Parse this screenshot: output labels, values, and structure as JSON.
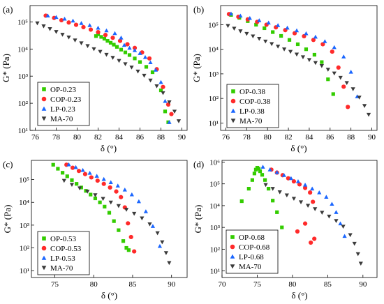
{
  "colors": {
    "OP": "#33cc00",
    "COP": "#ff2a2a",
    "LP": "#1a66ff",
    "MA": "#3a3a3a"
  },
  "chart_data": [
    {
      "type": "scatter",
      "panel_label": "(a)",
      "xlabel": "δ (°)",
      "ylabel": "G* (Pa)",
      "yscale": "log",
      "xlim": [
        75.5,
        90.5
      ],
      "ylim": [
        10,
        400000
      ],
      "xticks": [
        "76",
        "78",
        "80",
        "82",
        "84",
        "86",
        "88",
        "90"
      ],
      "yticks": [
        "10¹",
        "10²",
        "10³",
        "10⁴",
        "10⁵"
      ],
      "legend_position": "bottom-left",
      "series": [
        {
          "name": "OP-0.23",
          "marker": "square",
          "x": [
            81.8,
            82.0,
            82.3,
            82.6,
            82.9,
            83.2,
            83.5,
            83.8,
            84.2,
            84.6,
            85.0,
            85.5,
            86.0,
            86.6,
            87.2,
            88.0,
            88.4,
            88.7
          ],
          "y": [
            30000,
            35000,
            28000,
            24000,
            20000,
            17000,
            14500,
            12000,
            9500,
            7500,
            6000,
            4500,
            3300,
            2200,
            1400,
            300,
            50,
            20
          ]
        },
        {
          "name": "COP-0.23",
          "marker": "circle",
          "x": [
            77.0,
            77.8,
            78.5,
            79.2,
            79.9,
            80.6,
            81.3,
            82.0,
            82.7,
            83.4,
            84.1,
            84.8,
            85.5,
            86.2,
            86.9,
            87.6,
            88.2,
            88.7,
            89.0
          ],
          "y": [
            170000,
            140000,
            115000,
            95000,
            78000,
            64000,
            52000,
            42000,
            33000,
            26000,
            20000,
            15000,
            11000,
            7500,
            4500,
            1800,
            400,
            90,
            40
          ]
        },
        {
          "name": "LP-0.23",
          "marker": "triangle-up",
          "x": [
            77.2,
            78.0,
            78.8,
            79.6,
            80.4,
            81.2,
            82.0,
            82.8,
            83.6,
            84.2,
            84.5,
            85.0,
            85.5,
            86.0,
            86.5,
            87.0,
            87.5,
            88.0,
            88.4,
            88.8
          ],
          "y": [
            170000,
            150000,
            130000,
            110000,
            90000,
            75000,
            60000,
            48000,
            38000,
            26000,
            14000,
            11000,
            9000,
            7000,
            5000,
            3200,
            1700,
            600,
            120,
            20
          ]
        },
        {
          "name": "MA-70",
          "marker": "triangle-down",
          "x": [
            76.2,
            76.8,
            77.4,
            78.0,
            78.6,
            79.2,
            79.8,
            80.4,
            81.0,
            81.6,
            82.2,
            82.8,
            83.4,
            84.0,
            84.6,
            85.2,
            85.8,
            86.4,
            87.0,
            87.6,
            88.2,
            88.8,
            89.3,
            89.7
          ],
          "y": [
            90000,
            70000,
            55000,
            43000,
            34000,
            27000,
            21000,
            16500,
            13000,
            10000,
            8000,
            6200,
            4800,
            3700,
            2800,
            2100,
            1500,
            1050,
            700,
            430,
            240,
            110,
            50,
            22
          ]
        }
      ]
    },
    {
      "type": "scatter",
      "panel_label": "(b)",
      "xlabel": "δ (°)",
      "ylabel": "G* (Pa)",
      "yscale": "log",
      "xlim": [
        75.5,
        90.5
      ],
      "ylim": [
        5,
        600000
      ],
      "xticks": [
        "76",
        "78",
        "80",
        "82",
        "84",
        "86",
        "88",
        "90"
      ],
      "yticks": [
        "10¹",
        "10²",
        "10³",
        "10⁴",
        "10⁵"
      ],
      "legend_position": "bottom-left",
      "series": [
        {
          "name": "OP-0.38",
          "marker": "square",
          "x": [
            76.5,
            77.3,
            78.1,
            78.9,
            79.7,
            80.5,
            81.3,
            82.1,
            82.9,
            83.7,
            84.5,
            85.2,
            85.8,
            86.3
          ],
          "y": [
            250000,
            190000,
            140000,
            100000,
            72000,
            50000,
            35000,
            24000,
            16000,
            10000,
            6000,
            3000,
            600,
            150
          ]
        },
        {
          "name": "COP-0.38",
          "marker": "circle",
          "x": [
            76.3,
            77.2,
            78.1,
            79.0,
            79.9,
            80.8,
            81.7,
            82.6,
            83.5,
            84.4,
            85.3,
            86.2,
            86.8,
            87.3,
            87.7
          ],
          "y": [
            270000,
            210000,
            165000,
            130000,
            100000,
            78000,
            60000,
            45000,
            34000,
            24000,
            16000,
            8000,
            1800,
            300,
            45
          ]
        },
        {
          "name": "LP-0.38",
          "marker": "triangle-up",
          "x": [
            76.5,
            77.4,
            78.3,
            79.2,
            80.1,
            81.0,
            81.9,
            82.8,
            83.7,
            84.6,
            85.5,
            86.4,
            87.3,
            88.0,
            88.6
          ],
          "y": [
            280000,
            230000,
            185000,
            150000,
            120000,
            95000,
            75000,
            58000,
            44000,
            32000,
            21000,
            12000,
            5000,
            1200,
            120
          ]
        },
        {
          "name": "MA-70",
          "marker": "triangle-down",
          "x": [
            76.2,
            76.8,
            77.4,
            78.0,
            78.6,
            79.2,
            79.8,
            80.4,
            81.0,
            81.6,
            82.2,
            82.8,
            83.4,
            84.0,
            84.6,
            85.2,
            85.8,
            86.4,
            87.0,
            87.6,
            88.2,
            88.8,
            89.3,
            89.7
          ],
          "y": [
            90000,
            70000,
            55000,
            43000,
            34000,
            27000,
            21000,
            16500,
            13000,
            10000,
            8000,
            6200,
            4800,
            3700,
            2800,
            2100,
            1500,
            1050,
            700,
            430,
            240,
            110,
            50,
            22
          ]
        }
      ]
    },
    {
      "type": "scatter",
      "panel_label": "(c)",
      "xlabel": "δ (°)",
      "ylabel": "G* (Pa)",
      "yscale": "log",
      "xlim": [
        72,
        92
      ],
      "ylim": [
        5,
        700000
      ],
      "xticks": [
        "75",
        "80",
        "85",
        "90"
      ],
      "yticks": [
        "10¹",
        "10²",
        "10³",
        "10⁴",
        "10⁵"
      ],
      "legend_position": "bottom-left",
      "series": [
        {
          "name": "OP-0.53",
          "marker": "square",
          "x": [
            74.8,
            75.4,
            76.0,
            76.6,
            77.2,
            77.8,
            78.4,
            79.0,
            79.6,
            80.2,
            80.8,
            81.4,
            82.0,
            82.6,
            83.2,
            83.8,
            84.2,
            84.5
          ],
          "y": [
            450000,
            300000,
            200000,
            140000,
            95000,
            65000,
            45000,
            32000,
            22000,
            15000,
            10000,
            6500,
            3500,
            1500,
            600,
            200,
            100,
            80
          ]
        },
        {
          "name": "COP-0.53",
          "marker": "circle",
          "x": [
            76.5,
            77.3,
            78.1,
            78.9,
            79.7,
            80.5,
            81.3,
            82.1,
            82.9,
            83.5,
            84.0,
            84.4,
            84.8,
            85.2
          ],
          "y": [
            450000,
            330000,
            240000,
            175000,
            125000,
            90000,
            65000,
            45000,
            30000,
            17000,
            6000,
            1200,
            300,
            70
          ]
        },
        {
          "name": "LP-0.53",
          "marker": "triangle-up",
          "x": [
            76.8,
            77.7,
            78.6,
            79.5,
            80.4,
            81.3,
            82.2,
            83.1,
            84.0,
            84.9,
            85.8,
            86.7,
            87.6,
            88.5
          ],
          "y": [
            460000,
            350000,
            260000,
            195000,
            145000,
            105000,
            76000,
            54000,
            36000,
            22000,
            11000,
            4000,
            900,
            120
          ]
        },
        {
          "name": "MA-70",
          "marker": "triangle-down",
          "x": [
            76.2,
            77.2,
            78.2,
            79.2,
            80.2,
            81.2,
            82.2,
            83.2,
            84.2,
            85.2,
            86.2,
            87.2,
            88.2,
            88.8,
            89.3,
            89.7
          ],
          "y": [
            90000,
            60000,
            42000,
            30000,
            21000,
            14500,
            10000,
            7000,
            4800,
            3200,
            2000,
            1100,
            450,
            180,
            60,
            22
          ]
        }
      ]
    },
    {
      "type": "scatter",
      "panel_label": "(d)",
      "xlabel": "δ (°)",
      "ylabel": "G* (Pa)",
      "yscale": "log",
      "xlim": [
        70,
        92
      ],
      "ylim": [
        5,
        1200000
      ],
      "xticks": [
        "70",
        "75",
        "80",
        "85",
        "90"
      ],
      "yticks": [
        "10¹",
        "10²",
        "10³",
        "10⁴",
        "10⁵",
        "10⁶"
      ],
      "legend_position": "bottom-left",
      "series": [
        {
          "name": "OP-0.68",
          "marker": "square",
          "x": [
            72.8,
            73.8,
            74.3,
            74.6,
            74.8,
            75.0,
            75.2,
            75.4,
            75.7,
            76.1,
            76.6,
            77.2,
            77.8,
            78.5
          ],
          "y": [
            16000,
            60000,
            150000,
            300000,
            450000,
            550000,
            500000,
            380000,
            260000,
            150000,
            60000,
            17000,
            5000,
            1000
          ]
        },
        {
          "name": "COP-0.68",
          "marker": "circle",
          "x": [
            77.0,
            77.8,
            78.6,
            79.4,
            80.2,
            81.0,
            81.8,
            82.5,
            82.9,
            83.1,
            80.7,
            81.8,
            82.6
          ],
          "y": [
            450000,
            330000,
            250000,
            180000,
            130000,
            95000,
            65000,
            40000,
            15000,
            300,
            650,
            1500,
            200
          ]
        },
        {
          "name": "LP-0.68",
          "marker": "triangle-up",
          "x": [
            75.8,
            76.8,
            77.8,
            78.8,
            79.8,
            80.8,
            81.8,
            82.8,
            83.8,
            84.8,
            85.6,
            86.2,
            86.8,
            87.4
          ],
          "y": [
            600000,
            450000,
            340000,
            250000,
            180000,
            130000,
            90000,
            60000,
            40000,
            25000,
            12000,
            5000,
            1500,
            400
          ]
        },
        {
          "name": "MA-70",
          "marker": "triangle-down",
          "x": [
            76.2,
            77.2,
            78.2,
            79.2,
            80.2,
            81.2,
            82.2,
            83.2,
            84.2,
            85.2,
            86.2,
            87.2,
            88.2,
            88.8,
            89.3,
            89.7
          ],
          "y": [
            90000,
            60000,
            42000,
            30000,
            21000,
            14500,
            10000,
            7000,
            4800,
            3200,
            2000,
            1100,
            450,
            180,
            60,
            22
          ]
        }
      ]
    }
  ]
}
